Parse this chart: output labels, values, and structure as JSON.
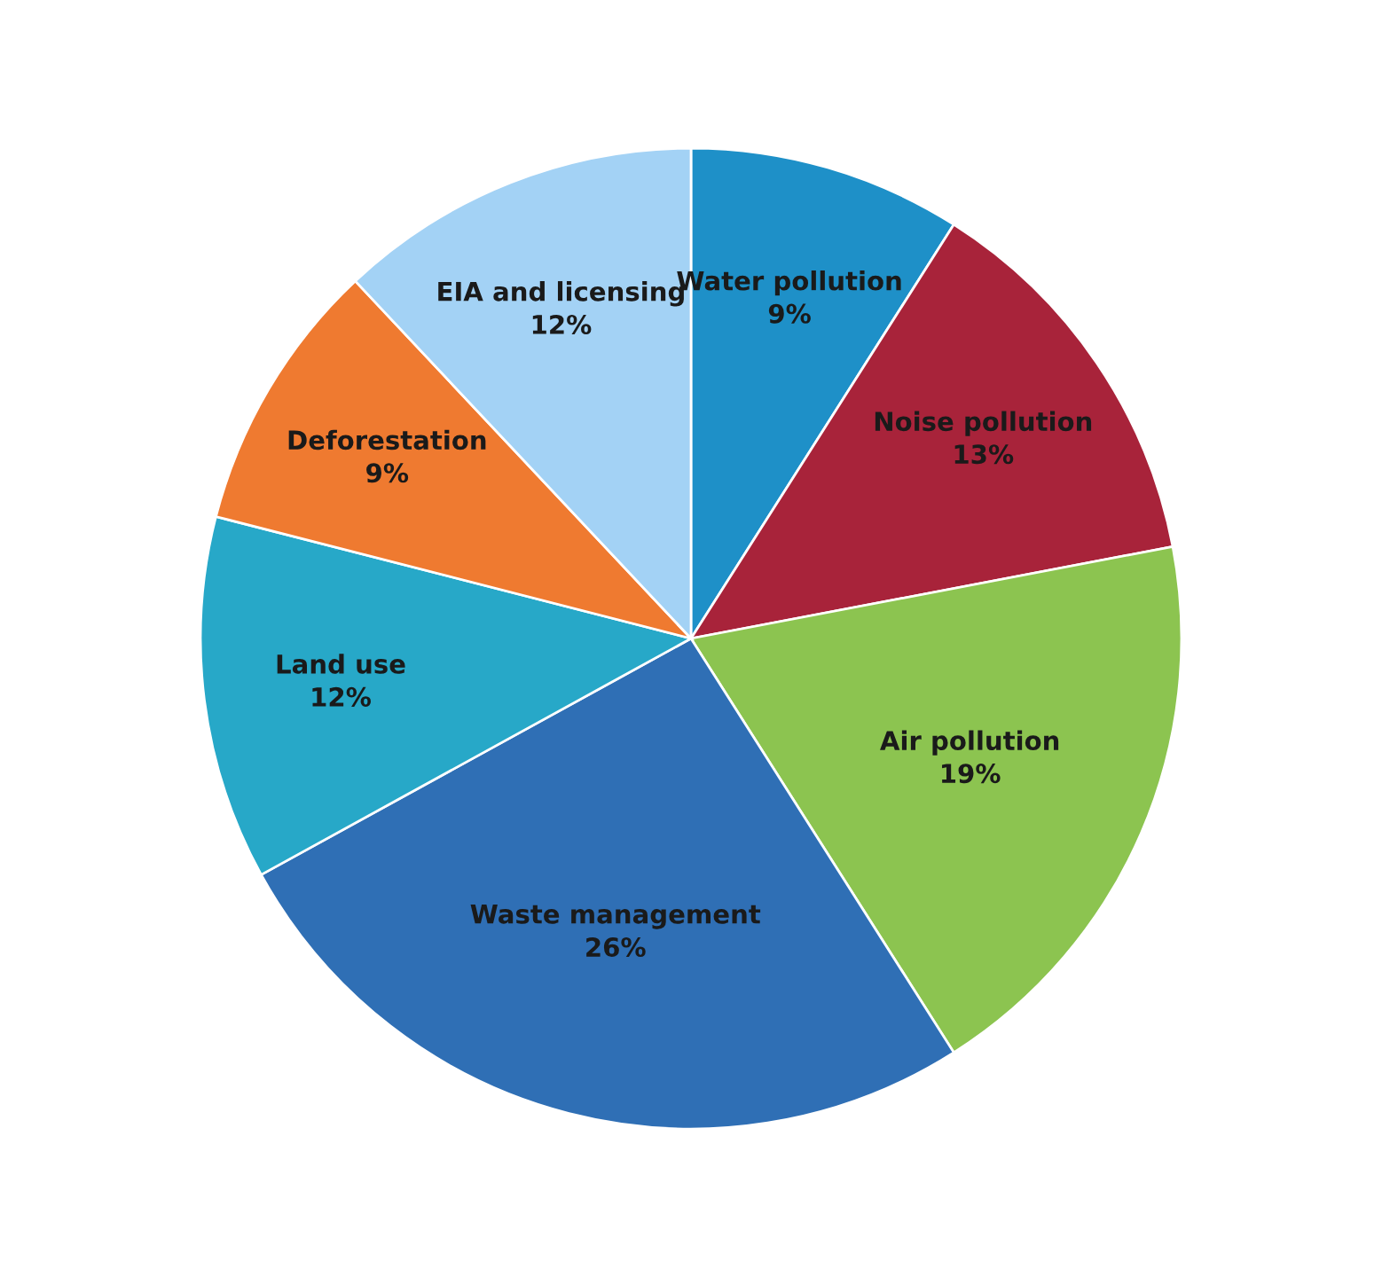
{
  "chart_data": {
    "type": "pie",
    "categories": [
      "Water pollution",
      "Noise pollution",
      "Air pollution",
      "Waste management",
      "Land use",
      "Deforestation",
      "EIA and licensing"
    ],
    "values": [
      9,
      13,
      19,
      26,
      12,
      9,
      12
    ],
    "colors": [
      "#1e90c8",
      "#a8233a",
      "#8cc450",
      "#2f6fb5",
      "#27a8c8",
      "#ef7a30",
      "#a3d2f5"
    ],
    "value_labels": [
      "9%",
      "13%",
      "19%",
      "26%",
      "12%",
      "9%",
      "12%"
    ]
  }
}
